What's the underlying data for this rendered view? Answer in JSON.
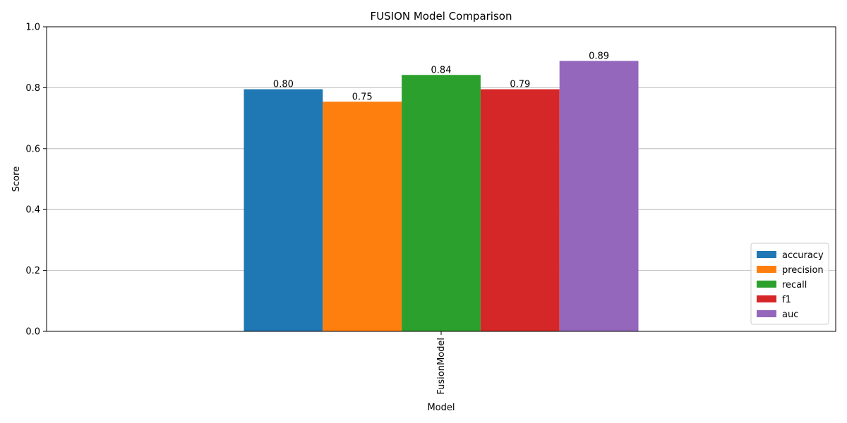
{
  "chart_data": {
    "type": "bar",
    "title": "FUSION Model Comparison",
    "xlabel": "Model",
    "ylabel": "Score",
    "categories": [
      "FusionModel"
    ],
    "ylim": [
      0,
      1
    ],
    "yticks": [
      "0.0",
      "0.2",
      "0.4",
      "0.6",
      "0.8",
      "1.0"
    ],
    "grid": "horizontal",
    "legend_position": "bottom-right",
    "series": [
      {
        "name": "accuracy",
        "values": [
          0.795
        ],
        "label": "0.80",
        "color": "#1f77b4"
      },
      {
        "name": "precision",
        "values": [
          0.754
        ],
        "label": "0.75",
        "color": "#ff7f0e"
      },
      {
        "name": "recall",
        "values": [
          0.842
        ],
        "label": "0.84",
        "color": "#2ca02c"
      },
      {
        "name": "f1",
        "values": [
          0.795
        ],
        "label": "0.79",
        "color": "#d62728"
      },
      {
        "name": "auc",
        "values": [
          0.888
        ],
        "label": "0.89",
        "color": "#9467bd"
      }
    ]
  }
}
